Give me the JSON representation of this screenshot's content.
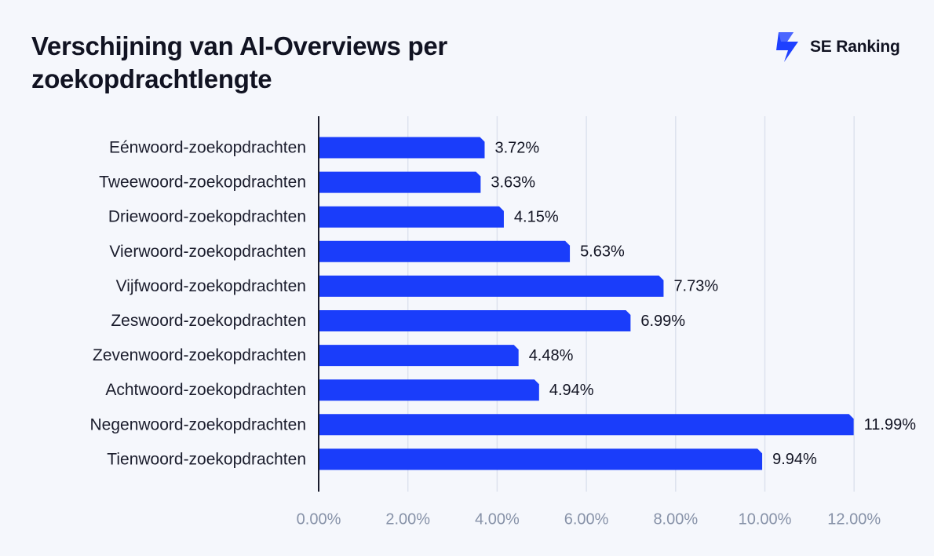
{
  "title": "Verschijning van AI-Overviews per zoekopdrachtlengte",
  "brand": {
    "name": "SE Ranking",
    "icon": "se-ranking-logo-icon",
    "color": "#1e40ff"
  },
  "colors": {
    "bar": "#1a3dfa",
    "grid": "#dde2ee",
    "axis": "#1a1c2c",
    "tick_text": "#8792a8",
    "background": "#f5f7fc"
  },
  "chart_data": {
    "type": "bar",
    "orientation": "horizontal",
    "title": "Verschijning van AI-Overviews per zoekopdrachtlengte",
    "categories": [
      "Eénwoord-zoekopdrachten",
      "Tweewoord-zoekopdrachten",
      "Driewoord-zoekopdrachten",
      "Vierwoord-zoekopdrachten",
      "Vijfwoord-zoekopdrachten",
      "Zeswoord-zoekopdrachten",
      "Zevenwoord-zoekopdrachten",
      "Achtwoord-zoekopdrachten",
      "Negenwoord-zoekopdrachten",
      "Tienwoord-zoekopdrachten"
    ],
    "values": [
      3.72,
      3.63,
      4.15,
      5.63,
      7.73,
      6.99,
      4.48,
      4.94,
      11.99,
      9.94
    ],
    "value_labels": [
      "3.72%",
      "3.63%",
      "4.15%",
      "5.63%",
      "7.73%",
      "6.99%",
      "4.48%",
      "4.94%",
      "11.99%",
      "9.94%"
    ],
    "x_ticks": [
      0,
      2,
      4,
      6,
      8,
      10,
      12
    ],
    "x_tick_labels": [
      "0.00%",
      "2.00%",
      "4.00%",
      "6.00%",
      "8.00%",
      "10.00%",
      "12.00%"
    ],
    "xlim": [
      0,
      12
    ],
    "xlabel": "",
    "ylabel": "",
    "grid": true,
    "legend": false
  }
}
